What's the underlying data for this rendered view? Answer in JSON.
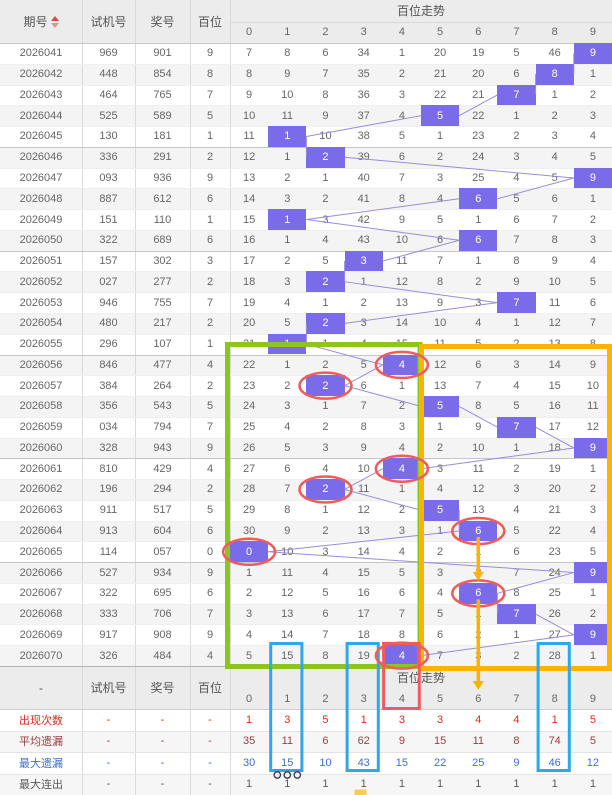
{
  "table": {
    "columns": [
      "期号",
      "试机号",
      "奖号",
      "百位"
    ],
    "trend_title": "百位走势",
    "digit_headers": [
      "0",
      "1",
      "2",
      "3",
      "4",
      "5",
      "6",
      "7",
      "8",
      "9"
    ],
    "rows": [
      {
        "issue": "2026041",
        "test": "969",
        "prize": "901",
        "digit": 9,
        "trend": [
          7,
          8,
          6,
          34,
          1,
          20,
          19,
          5,
          46,
          9
        ]
      },
      {
        "issue": "2026042",
        "test": "448",
        "prize": "854",
        "digit": 8,
        "trend": [
          8,
          9,
          7,
          35,
          2,
          21,
          20,
          6,
          8,
          1
        ]
      },
      {
        "issue": "2026043",
        "test": "464",
        "prize": "765",
        "digit": 7,
        "trend": [
          9,
          10,
          8,
          36,
          3,
          22,
          21,
          7,
          1,
          2
        ]
      },
      {
        "issue": "2026044",
        "test": "525",
        "prize": "589",
        "digit": 5,
        "trend": [
          10,
          11,
          9,
          37,
          4,
          5,
          22,
          1,
          2,
          3
        ]
      },
      {
        "issue": "2026045",
        "test": "130",
        "prize": "181",
        "digit": 1,
        "trend": [
          11,
          1,
          10,
          38,
          5,
          1,
          23,
          2,
          3,
          4
        ]
      },
      {
        "issue": "2026046",
        "test": "336",
        "prize": "291",
        "digit": 2,
        "trend": [
          12,
          1,
          2,
          39,
          6,
          2,
          24,
          3,
          4,
          5
        ]
      },
      {
        "issue": "2026047",
        "test": "093",
        "prize": "936",
        "digit": 9,
        "trend": [
          13,
          2,
          1,
          40,
          7,
          3,
          25,
          4,
          5,
          9
        ]
      },
      {
        "issue": "2026048",
        "test": "887",
        "prize": "612",
        "digit": 6,
        "trend": [
          14,
          3,
          2,
          41,
          8,
          4,
          6,
          5,
          6,
          1
        ]
      },
      {
        "issue": "2026049",
        "test": "151",
        "prize": "110",
        "digit": 1,
        "trend": [
          15,
          1,
          3,
          42,
          9,
          5,
          1,
          6,
          7,
          2
        ]
      },
      {
        "issue": "2026050",
        "test": "322",
        "prize": "689",
        "digit": 6,
        "trend": [
          16,
          1,
          4,
          43,
          10,
          6,
          6,
          7,
          8,
          3
        ]
      },
      {
        "issue": "2026051",
        "test": "157",
        "prize": "302",
        "digit": 3,
        "trend": [
          17,
          2,
          5,
          3,
          11,
          7,
          1,
          8,
          9,
          4
        ]
      },
      {
        "issue": "2026052",
        "test": "027",
        "prize": "277",
        "digit": 2,
        "trend": [
          18,
          3,
          2,
          1,
          12,
          8,
          2,
          9,
          10,
          5
        ]
      },
      {
        "issue": "2026053",
        "test": "946",
        "prize": "755",
        "digit": 7,
        "trend": [
          19,
          4,
          1,
          2,
          13,
          9,
          3,
          7,
          11,
          6
        ]
      },
      {
        "issue": "2026054",
        "test": "480",
        "prize": "217",
        "digit": 2,
        "trend": [
          20,
          5,
          2,
          3,
          14,
          10,
          4,
          1,
          12,
          7
        ]
      },
      {
        "issue": "2026055",
        "test": "296",
        "prize": "107",
        "digit": 1,
        "trend": [
          21,
          1,
          1,
          4,
          15,
          11,
          5,
          2,
          13,
          8
        ]
      },
      {
        "issue": "2026056",
        "test": "846",
        "prize": "477",
        "digit": 4,
        "trend": [
          22,
          1,
          2,
          5,
          4,
          12,
          6,
          3,
          14,
          9
        ]
      },
      {
        "issue": "2026057",
        "test": "384",
        "prize": "264",
        "digit": 2,
        "trend": [
          23,
          2,
          2,
          6,
          1,
          13,
          7,
          4,
          15,
          10
        ]
      },
      {
        "issue": "2026058",
        "test": "356",
        "prize": "543",
        "digit": 5,
        "trend": [
          24,
          3,
          1,
          7,
          2,
          5,
          8,
          5,
          16,
          11
        ]
      },
      {
        "issue": "2026059",
        "test": "034",
        "prize": "794",
        "digit": 7,
        "trend": [
          25,
          4,
          2,
          8,
          3,
          1,
          9,
          7,
          17,
          12
        ]
      },
      {
        "issue": "2026060",
        "test": "328",
        "prize": "943",
        "digit": 9,
        "trend": [
          26,
          5,
          3,
          9,
          4,
          2,
          10,
          1,
          18,
          9
        ]
      },
      {
        "issue": "2026061",
        "test": "810",
        "prize": "429",
        "digit": 4,
        "trend": [
          27,
          6,
          4,
          10,
          4,
          3,
          11,
          2,
          19,
          1
        ]
      },
      {
        "issue": "2026062",
        "test": "196",
        "prize": "294",
        "digit": 2,
        "trend": [
          28,
          7,
          2,
          11,
          1,
          4,
          12,
          3,
          20,
          2
        ]
      },
      {
        "issue": "2026063",
        "test": "911",
        "prize": "517",
        "digit": 5,
        "trend": [
          29,
          8,
          1,
          12,
          2,
          5,
          13,
          4,
          21,
          3
        ]
      },
      {
        "issue": "2026064",
        "test": "913",
        "prize": "604",
        "digit": 6,
        "trend": [
          30,
          9,
          2,
          13,
          3,
          1,
          6,
          5,
          22,
          4
        ]
      },
      {
        "issue": "2026065",
        "test": "114",
        "prize": "057",
        "digit": 0,
        "trend": [
          0,
          10,
          3,
          14,
          4,
          2,
          1,
          6,
          23,
          5
        ]
      },
      {
        "issue": "2026066",
        "test": "527",
        "prize": "934",
        "digit": 9,
        "trend": [
          1,
          11,
          4,
          15,
          5,
          3,
          2,
          7,
          24,
          9
        ]
      },
      {
        "issue": "2026067",
        "test": "322",
        "prize": "695",
        "digit": 6,
        "trend": [
          2,
          12,
          5,
          16,
          6,
          4,
          6,
          8,
          25,
          1
        ]
      },
      {
        "issue": "2026068",
        "test": "333",
        "prize": "706",
        "digit": 7,
        "trend": [
          3,
          13,
          6,
          17,
          7,
          5,
          1,
          7,
          26,
          2
        ]
      },
      {
        "issue": "2026069",
        "test": "917",
        "prize": "908",
        "digit": 9,
        "trend": [
          4,
          14,
          7,
          18,
          8,
          6,
          2,
          1,
          27,
          9
        ]
      },
      {
        "issue": "2026070",
        "test": "326",
        "prize": "484",
        "digit": 4,
        "trend": [
          5,
          15,
          8,
          19,
          4,
          7,
          3,
          2,
          28,
          1
        ]
      }
    ]
  },
  "summary": {
    "corner": "-",
    "dash": "-",
    "left_headers": [
      "试机号",
      "奖号",
      "百位"
    ],
    "trend_title": "百位走势",
    "digit_headers": [
      "0",
      "1",
      "2",
      "3",
      "4",
      "5",
      "6",
      "7",
      "8",
      "9"
    ],
    "rows": [
      {
        "label": "出现次数",
        "values": [
          1,
          3,
          5,
          1,
          3,
          3,
          4,
          4,
          1,
          5
        ]
      },
      {
        "label": "平均遗漏",
        "values": [
          35,
          11,
          6,
          62,
          9,
          15,
          11,
          8,
          74,
          5
        ]
      },
      {
        "label": "最大遗漏",
        "values": [
          30,
          15,
          10,
          43,
          15,
          22,
          25,
          9,
          46,
          12
        ]
      },
      {
        "label": "最大连出",
        "values": [
          1,
          1,
          1,
          1,
          1,
          1,
          1,
          1,
          1,
          1
        ]
      }
    ]
  },
  "annotations": {
    "circled_cells": [
      {
        "row": 15,
        "col": 4
      },
      {
        "row": 16,
        "col": 2
      },
      {
        "row": 20,
        "col": 4
      },
      {
        "row": 21,
        "col": 2
      },
      {
        "row": 23,
        "col": 6
      },
      {
        "row": 24,
        "col": 0
      },
      {
        "row": 26,
        "col": 6
      },
      {
        "row": 29,
        "col": 4
      }
    ],
    "green_box": {
      "from_row": 15,
      "to_row": 29,
      "from_col": 0,
      "to_col": 4
    },
    "orange_box": {
      "from_row": 15,
      "to_row": 29,
      "from_col": 5,
      "to_col": 9
    },
    "red_column_box": {
      "col": 4
    },
    "blue_column_boxes": [
      1,
      3,
      8
    ],
    "arrows": [
      {
        "col": 6,
        "from_row": 23,
        "to_row": 26
      },
      {
        "col": 6,
        "from_row": 26,
        "to_footer": true
      }
    ],
    "dots_under_col": 1,
    "dots_count": 3
  },
  "colors": {
    "highlight_bg": "#7a6ce8",
    "highlight_text": "#ffffff",
    "header_bg": "#ececec",
    "stripe": "#f4f4f5",
    "trend_line": "#9a8cd8",
    "sort_arrow": "#e2483c",
    "green_box": "#8dc41e",
    "orange_box": "#ffb300",
    "blue_box": "#2ea8e8",
    "red_mark": "#f15b5b",
    "dots": "#2b3a55",
    "row_occurrence": "#e0291e",
    "row_avg_miss": "#9b3f3f",
    "row_max_miss": "#3e6ed2",
    "row_max_streak": "#5a5a5a"
  }
}
